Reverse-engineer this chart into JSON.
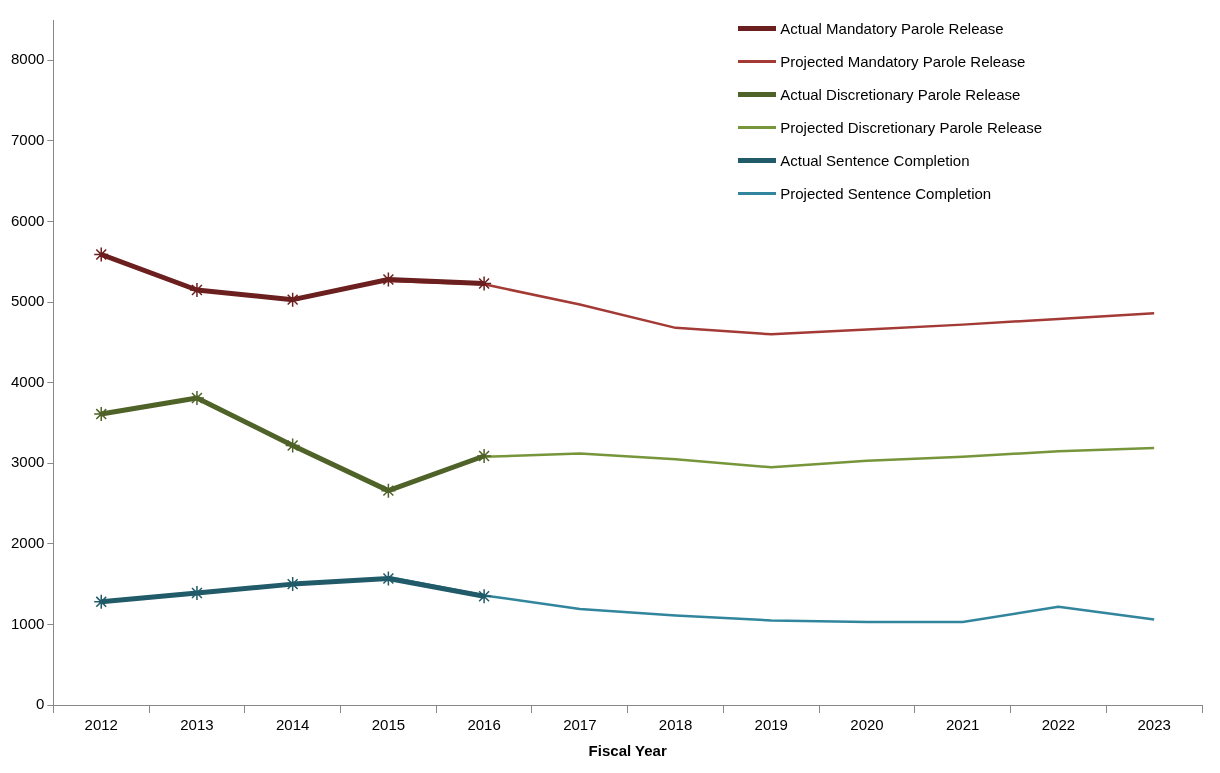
{
  "chart_data": {
    "type": "line",
    "xlabel": "Fiscal Year",
    "categories": [
      "2012",
      "2013",
      "2014",
      "2015",
      "2016",
      "2017",
      "2018",
      "2019",
      "2020",
      "2021",
      "2022",
      "2023"
    ],
    "series": [
      {
        "name": "Actual Mandatory Parole Release",
        "color": "#6b1f1f",
        "marker": "cross",
        "values": [
          5590,
          5150,
          5030,
          5280,
          5230,
          null,
          null,
          null,
          null,
          null,
          null,
          null
        ]
      },
      {
        "name": "Projected Mandatory Parole Release",
        "color": "#a33a35",
        "marker": "none",
        "values": [
          null,
          null,
          null,
          5260,
          5220,
          4970,
          4680,
          4600,
          4660,
          4720,
          4790,
          4860
        ]
      },
      {
        "name": "Actual Discretionary Parole Release",
        "color": "#4f6228",
        "marker": "cross",
        "values": [
          3610,
          3810,
          3220,
          2660,
          3090,
          null,
          null,
          null,
          null,
          null,
          null,
          null
        ]
      },
      {
        "name": "Projected Discretionary Parole Release",
        "color": "#77953a",
        "marker": "none",
        "values": [
          null,
          null,
          null,
          2660,
          3080,
          3120,
          3050,
          2950,
          3030,
          3080,
          3150,
          3190
        ]
      },
      {
        "name": "Actual Sentence Completion",
        "color": "#215a68",
        "marker": "cross",
        "values": [
          1280,
          1390,
          1500,
          1570,
          1350,
          null,
          null,
          null,
          null,
          null,
          null,
          null
        ]
      },
      {
        "name": "Projected Sentence Completion",
        "color": "#31859c",
        "marker": "none",
        "values": [
          null,
          null,
          null,
          1590,
          1360,
          1190,
          1110,
          1050,
          1030,
          1030,
          1220,
          1060
        ]
      }
    ],
    "ylim": [
      0,
      8500
    ],
    "yticks": [
      0,
      1000,
      2000,
      3000,
      4000,
      5000,
      6000,
      7000,
      8000
    ],
    "grid": false,
    "legend": "top right"
  }
}
